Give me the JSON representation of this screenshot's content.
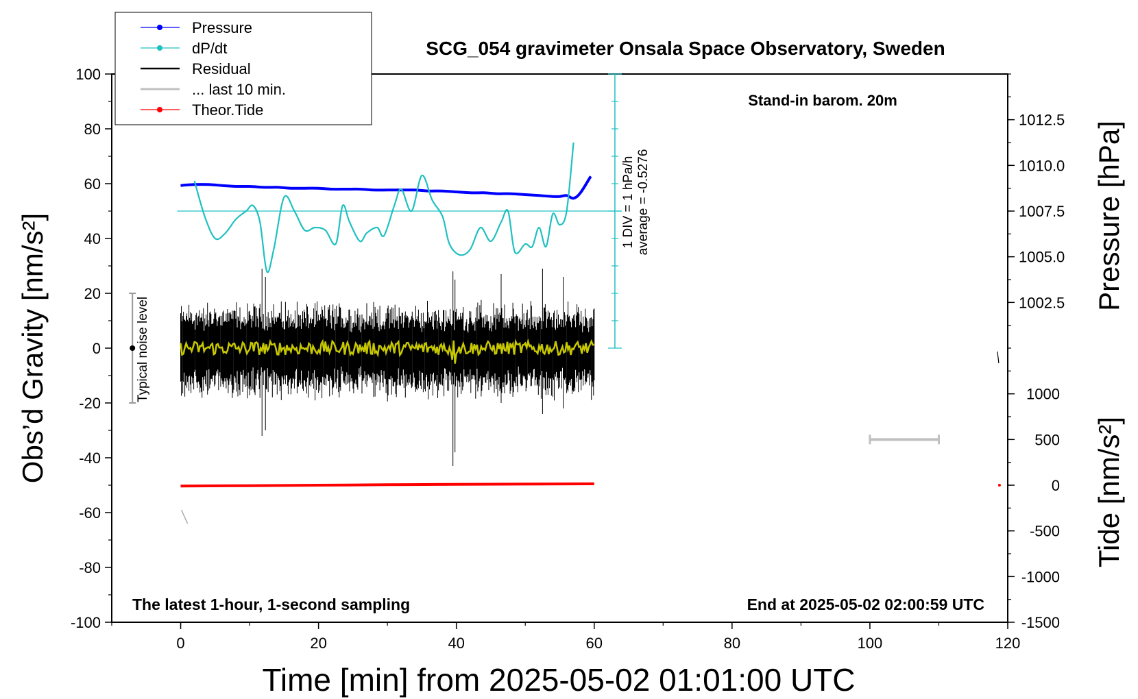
{
  "chart_data": {
    "type": "line",
    "title": "SCG_054 gravimeter Onsala Space Observatory, Sweden",
    "subtitle": "Stand-in barom. 20m",
    "xlabel": "Time [min] from 2025-05-02 01:01:00 UTC",
    "ylabel_left": "Obs’d Gravity [nm/s²]",
    "ylabel_right_top": "Pressure [hPa]",
    "ylabel_right_bottom": "Tide [nm/s²]",
    "footer_left": "The latest 1-hour, 1-second sampling",
    "footer_right": "End at 2025-05-02 02:00:59 UTC",
    "xlim": [
      -10,
      120
    ],
    "ylim": [
      -100,
      100
    ],
    "pressure_ylim": [
      1000.0,
      1015.0
    ],
    "tide_ylim": [
      -1500,
      1500
    ],
    "x_ticks": [
      "0",
      "20",
      "40",
      "60",
      "80",
      "100",
      "120"
    ],
    "y_ticks": [
      "-100",
      "-80",
      "-60",
      "-40",
      "-20",
      "0",
      "20",
      "40",
      "60",
      "80",
      "100"
    ],
    "pressure_ticks": [
      "1002.5",
      "1005.0",
      "1007.5",
      "1010.0",
      "1012.5"
    ],
    "tide_ticks": [
      "-1500",
      "-1000",
      "-500",
      "0",
      "500",
      "1000"
    ],
    "dpdt_scale": {
      "line1": "1 DIV = 1 hPa/h",
      "line2": "average = -0.5276"
    },
    "noise_label": "Typical noise level",
    "noise_range": [
      -20,
      20
    ],
    "legend": {
      "placement": "top-left",
      "items": [
        "Pressure",
        "dP/dt",
        "Residual",
        "... last 10 min.",
        "Theor.Tide"
      ]
    },
    "colors": {
      "pressure": "#0000ff",
      "dpdt": "#20c0c0",
      "residual": "#000000",
      "last10": "#c0c0c0",
      "tide": "#ff0000",
      "smoothed": "#c8c800"
    },
    "series": [
      {
        "name": "Pressure",
        "axis": "pressure",
        "x": [
          0,
          2,
          4,
          6,
          8,
          10,
          12,
          14,
          16,
          18,
          20,
          22,
          24,
          26,
          28,
          30,
          32,
          34,
          36,
          38,
          40,
          42,
          44,
          46,
          48,
          50,
          52,
          54,
          55,
          56,
          57,
          58,
          59.5
        ],
        "y": [
          1008.9,
          1008.95,
          1008.95,
          1008.9,
          1008.85,
          1008.85,
          1008.8,
          1008.8,
          1008.75,
          1008.75,
          1008.75,
          1008.7,
          1008.7,
          1008.7,
          1008.65,
          1008.65,
          1008.65,
          1008.65,
          1008.6,
          1008.6,
          1008.55,
          1008.5,
          1008.5,
          1008.45,
          1008.45,
          1008.4,
          1008.35,
          1008.3,
          1008.3,
          1008.35,
          1008.2,
          1008.5,
          1009.4
        ]
      },
      {
        "name": "dP/dt",
        "axis": "gravity",
        "x": [
          2,
          3.5,
          5,
          6.5,
          8,
          9.5,
          10.5,
          11.5,
          12.5,
          13.5,
          15,
          16.5,
          18,
          19.5,
          21,
          22.5,
          23.5,
          24.5,
          26,
          27,
          28.5,
          29.5,
          31,
          32,
          33.5,
          35,
          36.5,
          38,
          39,
          40.5,
          42,
          43.5,
          45,
          46.5,
          47.5,
          48.5,
          50,
          51,
          52,
          53,
          54,
          55,
          56,
          57
        ],
        "y": [
          61,
          48,
          40,
          42,
          47,
          50,
          52,
          46,
          28,
          36,
          55,
          50,
          43,
          44,
          43,
          38,
          52,
          46,
          39,
          42,
          44,
          41,
          52,
          58,
          50,
          63,
          54,
          48,
          38,
          34,
          36,
          44,
          39,
          46,
          50,
          35,
          38,
          37,
          44,
          37,
          49,
          45,
          50,
          75
        ]
      },
      {
        "name": "Theor.Tide",
        "axis": "tide",
        "x": [
          0,
          10,
          20,
          30,
          40,
          50,
          60
        ],
        "y": [
          -10,
          -5,
          0,
          5,
          10,
          12,
          15
        ]
      }
    ],
    "residual": {
      "x_range": [
        0,
        60
      ],
      "envelope_abs": 20,
      "spikes": [
        {
          "x": 11.8,
          "min": -32,
          "max": 29
        },
        {
          "x": 12.3,
          "min": -30,
          "max": 26
        },
        {
          "x": 39.5,
          "min": -43,
          "max": 28
        },
        {
          "x": 39.8,
          "min": -38,
          "max": 25
        },
        {
          "x": 46.5,
          "min": -20,
          "max": 27
        },
        {
          "x": 52.5,
          "min": -24,
          "max": 29
        },
        {
          "x": 55.5,
          "min": -22,
          "max": 26
        }
      ]
    }
  }
}
